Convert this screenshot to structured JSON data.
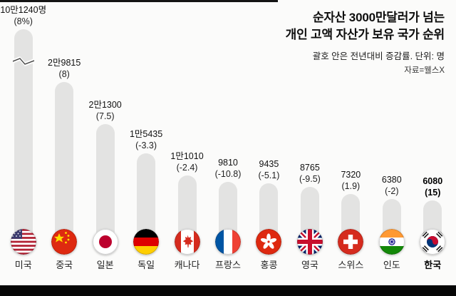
{
  "frame": {
    "background": "#fbfbfa",
    "bar_color": "#e3e3e2",
    "black_band_color": "#060606"
  },
  "header": {
    "title_line1": "순자산 3000만달러가 넘는",
    "title_line2": "개인 고액 자산가 보유 국가 순위",
    "subtitle": "괄호 안은 전년대비 증감률. 단위: 명",
    "source": "자료=웰스X"
  },
  "chart_data": {
    "type": "bar",
    "unit": "명",
    "title": "순자산 3000만달러가 넘는 개인 고액 자산가 보유 국가 순위",
    "categories": [
      "미국",
      "중국",
      "일본",
      "독일",
      "캐나다",
      "프랑스",
      "홍콩",
      "영국",
      "스위스",
      "인도",
      "한국"
    ],
    "values": [
      101240,
      29815,
      21300,
      15435,
      11010,
      9810,
      9435,
      8765,
      7320,
      6380,
      6080
    ],
    "value_labels": [
      "10만1240명",
      "2만9815",
      "2만1300",
      "1만5435",
      "1만1010",
      "9810",
      "9435",
      "8765",
      "7320",
      "6380",
      "6080"
    ],
    "yoy_change_values": [
      8,
      8,
      7.5,
      -3.3,
      -2.4,
      -10.8,
      -5.1,
      -9.5,
      1.9,
      -2,
      15
    ],
    "yoy_change_labels": [
      "(8%)",
      "(8)",
      "(7.5)",
      "(-3.3)",
      "(-2.4)",
      "(-10.8)",
      "(-5.1)",
      "(-9.5)",
      "(1.9)",
      "(-2)",
      "(15)"
    ],
    "flags": [
      "us",
      "cn",
      "jp",
      "de",
      "ca",
      "fr",
      "hk",
      "gb",
      "ch",
      "in",
      "kr"
    ],
    "flag_names": [
      "usa-flag",
      "china-flag",
      "japan-flag",
      "germany-flag",
      "canada-flag",
      "france-flag",
      "hongkong-flag",
      "uk-flag",
      "switzerland-flag",
      "india-flag",
      "southkorea-flag"
    ],
    "highlighted_category": "한국",
    "axis_break_on": "미국",
    "legend": "none",
    "grid": "off",
    "bar_shape": "rounded-pill"
  }
}
